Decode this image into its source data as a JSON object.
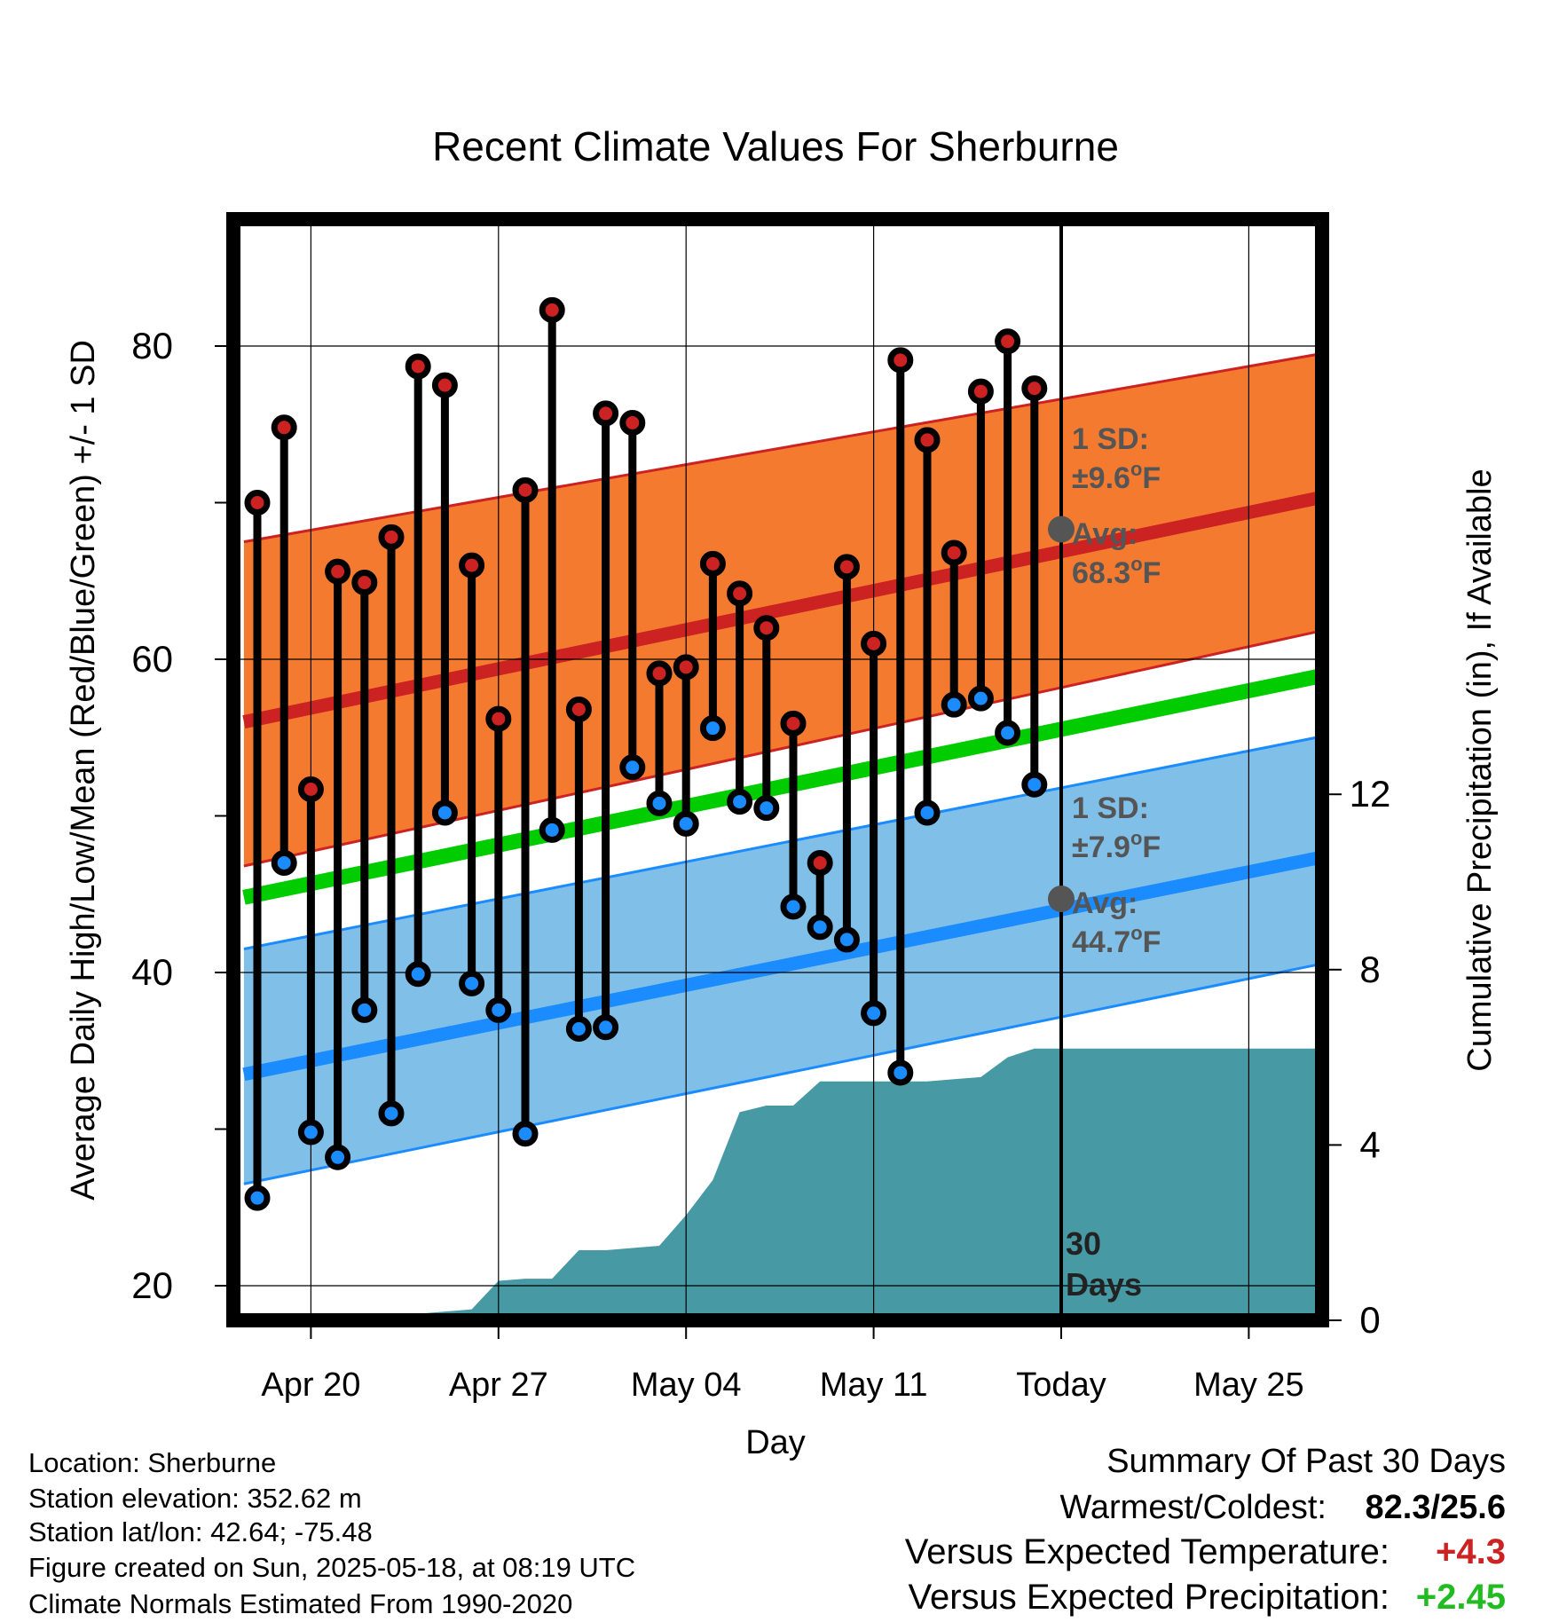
{
  "chart_data": {
    "type": "line",
    "title": "Recent Climate Values For Sherburne",
    "xlabel": "Day",
    "ylabel": "Average Daily High/Low/Mean (Red/Blue/Green) +/- 1 SD",
    "y2label": "Cumulative Precipitation (in), If Available",
    "ylim": [
      18,
      88
    ],
    "y2lim": [
      0,
      29.5
    ],
    "yticks": [
      "20",
      "40",
      "60",
      "80"
    ],
    "y2ticks": [
      "0",
      "4",
      "8",
      "12"
    ],
    "xlim": [
      -0.5,
      41
    ],
    "xticks": [
      {
        "label": "Apr 20",
        "day": 2
      },
      {
        "label": "Apr 27",
        "day": 9
      },
      {
        "label": "May 04",
        "day": 16
      },
      {
        "label": "May 11",
        "day": 23
      },
      {
        "label": "Today",
        "day": 30
      },
      {
        "label": "May 25",
        "day": 37
      }
    ],
    "grid": true,
    "today_day": 30,
    "series_colors": {
      "high": "#cc2222",
      "low": "#1a8cff",
      "mean": "#00cc00",
      "high_band": "#f47a30",
      "low_band": "#80c0e8",
      "precip": "#4799a3"
    },
    "series": [
      {
        "name": "high",
        "values": [
          70.0,
          74.8,
          51.7,
          65.6,
          64.9,
          67.8,
          78.7,
          77.5,
          66.0,
          56.2,
          70.8,
          82.3,
          56.8,
          75.7,
          75.1,
          59.1,
          59.5,
          66.1,
          64.2,
          62.0,
          55.9,
          47.0,
          65.9,
          61.0,
          79.1,
          74.0,
          66.8,
          77.1,
          80.3,
          77.3
        ]
      },
      {
        "name": "low",
        "values": [
          25.6,
          47.0,
          29.8,
          28.2,
          37.6,
          31.0,
          39.9,
          50.2,
          39.3,
          37.6,
          29.7,
          49.1,
          36.4,
          36.5,
          53.1,
          50.8,
          49.5,
          55.6,
          50.9,
          50.5,
          44.2,
          42.9,
          42.1,
          37.4,
          33.6,
          50.2,
          57.1,
          57.5,
          55.3,
          52.0
        ]
      }
    ],
    "normals": {
      "high_avg_start": 56.0,
      "high_avg_end": 70.8,
      "high_sd_low_start": 46.8,
      "high_sd_low_end": 62.3,
      "high_sd_high_start": 67.5,
      "high_sd_high_end": 79.9,
      "low_avg_start": 33.5,
      "low_avg_end": 47.8,
      "low_sd_low_start": 26.5,
      "low_sd_low_end": 41.0,
      "low_sd_high_start": 41.5,
      "low_sd_high_end": 55.5,
      "mean_start": 44.8,
      "mean_end": 59.4
    },
    "precip": {
      "days": [
        -0.5,
        0,
        1,
        2,
        3,
        4,
        5,
        6,
        7,
        8,
        9,
        10,
        11,
        12,
        13,
        14,
        15,
        16,
        17,
        18,
        19,
        20,
        21,
        22,
        23,
        24,
        25,
        26,
        27,
        28,
        29,
        30,
        41
      ],
      "values": [
        0.0,
        0.0,
        0.0,
        0.1,
        0.1,
        0.1,
        0.12,
        0.15,
        0.2,
        0.25,
        0.9,
        0.95,
        0.95,
        1.6,
        1.6,
        1.65,
        1.7,
        2.4,
        3.2,
        4.75,
        4.9,
        4.9,
        5.45,
        5.45,
        5.45,
        5.45,
        5.45,
        5.5,
        5.55,
        6.0,
        6.2,
        6.2,
        6.2
      ]
    }
  },
  "annotations": {
    "high_sd_title": "1 SD:",
    "high_sd_value": "±9.6",
    "high_avg_title": "Avg:",
    "high_avg_value": "68.3",
    "low_sd_title": "1 SD:",
    "low_sd_value": "±7.9",
    "low_avg_title": "Avg:",
    "low_avg_value": "44.7",
    "degree_sup": "o",
    "unit_letter": "F",
    "days_count": "30",
    "days_word": "Days",
    "high_avg_marker": 68.3,
    "low_avg_marker": 44.7
  },
  "info": {
    "location": "Location: Sherburne",
    "elevation": "Station elevation: 352.62 m",
    "latlon": "Station lat/lon: 42.64; -75.48",
    "created": "Figure created on Sun, 2025-05-18, at 08:19 UTC",
    "normals": "Climate Normals Estimated From 1990-2020"
  },
  "summary": {
    "title": "Summary Of Past 30 Days",
    "warm_cold_label": "Warmest/Coldest:",
    "warm_cold_value": "82.3/25.6",
    "temp_label": "Versus Expected Temperature:",
    "temp_value": "+4.3",
    "precip_label": "Versus Expected Precipitation:",
    "precip_value": "+2.45",
    "temp_color": "#cc2222",
    "precip_color": "#22bb22"
  }
}
